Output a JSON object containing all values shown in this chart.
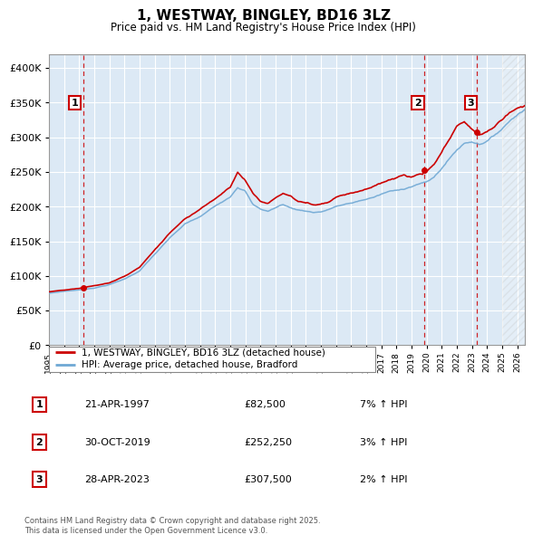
{
  "title": "1, WESTWAY, BINGLEY, BD16 3LZ",
  "subtitle": "Price paid vs. HM Land Registry's House Price Index (HPI)",
  "legend_entry1": "1, WESTWAY, BINGLEY, BD16 3LZ (detached house)",
  "legend_entry2": "HPI: Average price, detached house, Bradford",
  "footer": "Contains HM Land Registry data © Crown copyright and database right 2025.\nThis data is licensed under the Open Government Licence v3.0.",
  "sale_points": [
    {
      "num": 1,
      "date": "21-APR-1997",
      "price": 82500,
      "pct": "7%",
      "dir": "↑"
    },
    {
      "num": 2,
      "date": "30-OCT-2019",
      "price": 252250,
      "pct": "3%",
      "dir": "↑"
    },
    {
      "num": 3,
      "date": "28-APR-2023",
      "price": 307500,
      "pct": "2%",
      "dir": "↑"
    }
  ],
  "sale_dates_decimal": [
    1997.31,
    2019.83,
    2023.32
  ],
  "sale_prices": [
    82500,
    252250,
    307500
  ],
  "hpi_color": "#6fa8d4",
  "price_color": "#cc0000",
  "fig_bg_color": "#f0f0f0",
  "plot_bg_color": "#dce9f5",
  "grid_color": "#ffffff",
  "annotation_box_color": "#cc0000",
  "dashed_line_color": "#cc0000",
  "ylim": [
    0,
    420000
  ],
  "xlim_start": 1995.0,
  "xlim_end": 2026.5,
  "hatch_start": 2025.0,
  "hpi_keypoints": [
    [
      1995.0,
      75000
    ],
    [
      1996.0,
      78000
    ],
    [
      1997.0,
      80000
    ],
    [
      1998.0,
      83000
    ],
    [
      1999.0,
      88000
    ],
    [
      2000.0,
      96000
    ],
    [
      2001.0,
      108000
    ],
    [
      2002.0,
      132000
    ],
    [
      2003.0,
      155000
    ],
    [
      2004.0,
      175000
    ],
    [
      2005.0,
      185000
    ],
    [
      2006.0,
      200000
    ],
    [
      2007.0,
      215000
    ],
    [
      2007.5,
      230000
    ],
    [
      2008.0,
      225000
    ],
    [
      2008.5,
      205000
    ],
    [
      2009.0,
      198000
    ],
    [
      2009.5,
      195000
    ],
    [
      2010.0,
      200000
    ],
    [
      2010.5,
      205000
    ],
    [
      2011.0,
      200000
    ],
    [
      2011.5,
      197000
    ],
    [
      2012.0,
      196000
    ],
    [
      2012.5,
      194000
    ],
    [
      2013.0,
      195000
    ],
    [
      2013.5,
      198000
    ],
    [
      2014.0,
      203000
    ],
    [
      2014.5,
      205000
    ],
    [
      2015.0,
      207000
    ],
    [
      2015.5,
      210000
    ],
    [
      2016.0,
      213000
    ],
    [
      2016.5,
      216000
    ],
    [
      2017.0,
      220000
    ],
    [
      2017.5,
      224000
    ],
    [
      2018.0,
      225000
    ],
    [
      2018.5,
      228000
    ],
    [
      2019.0,
      232000
    ],
    [
      2019.5,
      236000
    ],
    [
      2020.0,
      238000
    ],
    [
      2020.5,
      245000
    ],
    [
      2021.0,
      258000
    ],
    [
      2021.5,
      272000
    ],
    [
      2022.0,
      285000
    ],
    [
      2022.5,
      295000
    ],
    [
      2023.0,
      298000
    ],
    [
      2023.5,
      295000
    ],
    [
      2024.0,
      300000
    ],
    [
      2024.5,
      308000
    ],
    [
      2025.0,
      318000
    ],
    [
      2025.5,
      330000
    ],
    [
      2026.0,
      340000
    ],
    [
      2026.5,
      348000
    ]
  ],
  "price_keypoints": [
    [
      1995.0,
      77000
    ],
    [
      1996.0,
      79000
    ],
    [
      1997.0,
      81000
    ],
    [
      1997.31,
      82500
    ],
    [
      1998.0,
      85000
    ],
    [
      1999.0,
      89000
    ],
    [
      2000.0,
      98000
    ],
    [
      2001.0,
      111000
    ],
    [
      2002.0,
      136000
    ],
    [
      2003.0,
      160000
    ],
    [
      2004.0,
      182000
    ],
    [
      2005.0,
      196000
    ],
    [
      2006.0,
      212000
    ],
    [
      2007.0,
      230000
    ],
    [
      2007.5,
      252000
    ],
    [
      2008.0,
      240000
    ],
    [
      2008.5,
      222000
    ],
    [
      2009.0,
      210000
    ],
    [
      2009.5,
      207000
    ],
    [
      2010.0,
      215000
    ],
    [
      2010.5,
      222000
    ],
    [
      2011.0,
      218000
    ],
    [
      2011.5,
      210000
    ],
    [
      2012.0,
      208000
    ],
    [
      2012.5,
      205000
    ],
    [
      2013.0,
      207000
    ],
    [
      2013.5,
      210000
    ],
    [
      2014.0,
      218000
    ],
    [
      2014.5,
      222000
    ],
    [
      2015.0,
      225000
    ],
    [
      2015.5,
      228000
    ],
    [
      2016.0,
      232000
    ],
    [
      2016.5,
      236000
    ],
    [
      2017.0,
      240000
    ],
    [
      2017.5,
      245000
    ],
    [
      2018.0,
      248000
    ],
    [
      2018.5,
      252000
    ],
    [
      2019.0,
      248000
    ],
    [
      2019.5,
      252000
    ],
    [
      2019.83,
      252250
    ],
    [
      2020.0,
      255000
    ],
    [
      2020.5,
      265000
    ],
    [
      2021.0,
      282000
    ],
    [
      2021.5,
      300000
    ],
    [
      2022.0,
      318000
    ],
    [
      2022.5,
      325000
    ],
    [
      2023.0,
      315000
    ],
    [
      2023.32,
      307500
    ],
    [
      2023.5,
      305000
    ],
    [
      2024.0,
      310000
    ],
    [
      2024.5,
      318000
    ],
    [
      2025.0,
      328000
    ],
    [
      2025.5,
      338000
    ],
    [
      2026.0,
      345000
    ],
    [
      2026.5,
      350000
    ]
  ]
}
